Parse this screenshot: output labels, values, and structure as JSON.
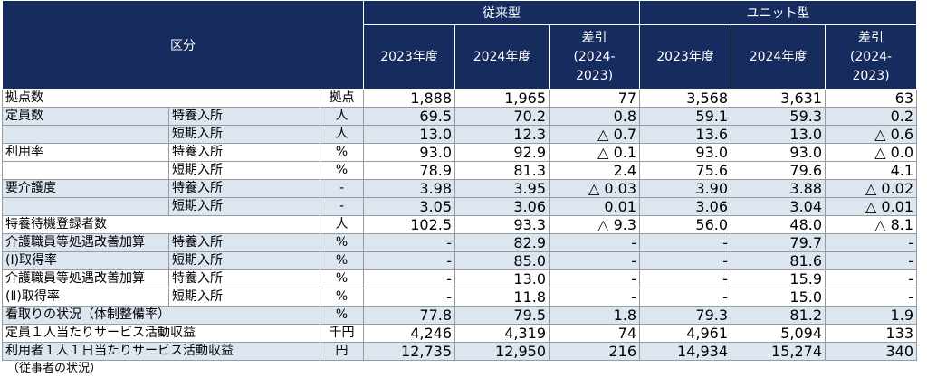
{
  "table": {
    "header": {
      "category": "区分",
      "groups": [
        {
          "name": "従来型",
          "columns": [
            "2023年度",
            "2024年度",
            "差引\n(2024-\n2023)"
          ]
        },
        {
          "name": "ユニット型",
          "columns": [
            "2023年度",
            "2024年度",
            "差引\n(2024-\n2023)"
          ]
        }
      ]
    },
    "rows": [
      {
        "label": "拠点数",
        "unit": "拠点",
        "values": [
          "1,888",
          "1,965",
          "77",
          "3,568",
          "3,631",
          "63"
        ]
      },
      {
        "label": "定員数",
        "sublabel": "特養入所",
        "unit": "人",
        "values": [
          "69.5",
          "70.2",
          "0.8",
          "59.1",
          "59.3",
          "0.2"
        ]
      },
      {
        "sublabel": "短期入所",
        "unit": "人",
        "values": [
          "13.0",
          "12.3",
          "△ 0.7",
          "13.6",
          "13.0",
          "△ 0.6"
        ]
      },
      {
        "label": "利用率",
        "sublabel": "特養入所",
        "unit": "%",
        "values": [
          "93.0",
          "92.9",
          "△ 0.1",
          "93.0",
          "93.0",
          "△ 0.0"
        ]
      },
      {
        "sublabel": "短期入所",
        "unit": "%",
        "values": [
          "78.9",
          "81.3",
          "2.4",
          "75.6",
          "79.6",
          "4.1"
        ]
      },
      {
        "label": "要介護度",
        "sublabel": "特養入所",
        "unit": "-",
        "values": [
          "3.98",
          "3.95",
          "△ 0.03",
          "3.90",
          "3.88",
          "△ 0.02"
        ]
      },
      {
        "sublabel": "短期入所",
        "unit": "-",
        "values": [
          "3.05",
          "3.06",
          "0.01",
          "3.06",
          "3.04",
          "△ 0.01"
        ]
      },
      {
        "label": "特養待機登録者数",
        "unit": "人",
        "values": [
          "102.5",
          "93.3",
          "△ 9.3",
          "56.0",
          "48.0",
          "△ 8.1"
        ]
      },
      {
        "label": "介護職員等処遇改善加算",
        "sublabel": "特養入所",
        "unit": "%",
        "values": [
          "-",
          "82.9",
          "-",
          "-",
          "79.7",
          "-"
        ]
      },
      {
        "label": "(Ⅰ)取得率",
        "sublabel": "短期入所",
        "unit": "%",
        "values": [
          "-",
          "85.0",
          "-",
          "-",
          "81.6",
          "-"
        ]
      },
      {
        "label": "介護職員等処遇改善加算",
        "sublabel": "特養入所",
        "unit": "%",
        "values": [
          "-",
          "13.0",
          "-",
          "-",
          "15.9",
          "-"
        ]
      },
      {
        "label": "(Ⅱ)取得率",
        "sublabel": "短期入所",
        "unit": "%",
        "values": [
          "-",
          "11.8",
          "-",
          "-",
          "15.0",
          "-"
        ]
      },
      {
        "label": "看取りの状況（体制整備率）",
        "unit": "%",
        "values": [
          "77.8",
          "79.5",
          "1.8",
          "79.3",
          "81.2",
          "1.9"
        ]
      },
      {
        "label": "定員１人当たりサービス活動収益",
        "unit": "千円",
        "values": [
          "4,246",
          "4,319",
          "74",
          "4,961",
          "5,094",
          "133"
        ]
      },
      {
        "label": "利用者１人１日当たりサービス活動収益",
        "unit": "円",
        "values": [
          "12,735",
          "12,950",
          "216",
          "14,934",
          "15,274",
          "340"
        ]
      }
    ],
    "shading": [
      false,
      true,
      true,
      false,
      false,
      true,
      true,
      false,
      true,
      true,
      false,
      false,
      true,
      false,
      true
    ]
  },
  "note": "（従事者の状況）"
}
